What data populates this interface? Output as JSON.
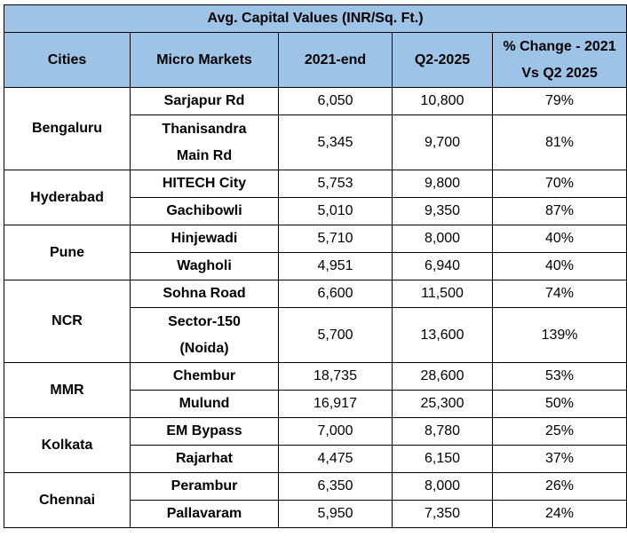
{
  "title": "Avg. Capital Values (INR/Sq. Ft.)",
  "headers": [
    "Cities",
    "Micro Markets",
    "2021-end",
    "Q2-2025",
    "% Change - 2021 Vs Q2 2025"
  ],
  "header_change_line1": "% Change - 2021",
  "header_change_line2": "Vs Q2 2025",
  "cities": [
    {
      "name": "Bengaluru",
      "rows": [
        {
          "market": "Sarjapur Rd",
          "v2021": "6,050",
          "q2025": "10,800",
          "change": "79%"
        },
        {
          "market_line1": "Thanisandra",
          "market_line2": "Main Rd",
          "v2021": "5,345",
          "q2025": "9,700",
          "change": "81%"
        }
      ]
    },
    {
      "name": "Hyderabad",
      "rows": [
        {
          "market": "HITECH City",
          "v2021": "5,753",
          "q2025": "9,800",
          "change": "70%"
        },
        {
          "market": "Gachibowli",
          "v2021": "5,010",
          "q2025": "9,350",
          "change": "87%"
        }
      ]
    },
    {
      "name": "Pune",
      "rows": [
        {
          "market": "Hinjewadi",
          "v2021": "5,710",
          "q2025": "8,000",
          "change": "40%"
        },
        {
          "market": "Wagholi",
          "v2021": "4,951",
          "q2025": "6,940",
          "change": "40%"
        }
      ]
    },
    {
      "name": "NCR",
      "rows": [
        {
          "market": "Sohna Road",
          "v2021": "6,600",
          "q2025": "11,500",
          "change": "74%"
        },
        {
          "market_line1": "Sector-150",
          "market_line2": "(Noida)",
          "v2021": "5,700",
          "q2025": "13,600",
          "change": "139%"
        }
      ]
    },
    {
      "name": "MMR",
      "rows": [
        {
          "market": "Chembur",
          "v2021": "18,735",
          "q2025": "28,600",
          "change": "53%"
        },
        {
          "market": "Mulund",
          "v2021": "16,917",
          "q2025": "25,300",
          "change": "50%"
        }
      ]
    },
    {
      "name": "Kolkata",
      "rows": [
        {
          "market": "EM Bypass",
          "v2021": "7,000",
          "q2025": "8,780",
          "change": "25%"
        },
        {
          "market": "Rajarhat",
          "v2021": "4,475",
          "q2025": "6,150",
          "change": "37%"
        }
      ]
    },
    {
      "name": "Chennai",
      "rows": [
        {
          "market": "Perambur",
          "v2021": "6,350",
          "q2025": "8,000",
          "change": "26%"
        },
        {
          "market": "Pallavaram",
          "v2021": "5,950",
          "q2025": "7,350",
          "change": "24%"
        }
      ]
    }
  ]
}
